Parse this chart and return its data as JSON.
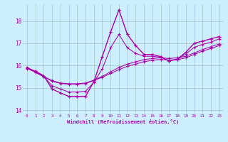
{
  "xlabel": "Windchill (Refroidissement éolien,°C)",
  "hours": [
    0,
    1,
    2,
    3,
    4,
    5,
    6,
    7,
    8,
    9,
    10,
    11,
    12,
    13,
    14,
    15,
    16,
    17,
    18,
    19,
    20,
    21,
    22,
    23
  ],
  "line_max": [
    15.9,
    15.75,
    15.55,
    14.95,
    14.78,
    14.62,
    14.62,
    14.62,
    15.28,
    16.4,
    17.5,
    18.5,
    17.4,
    16.9,
    16.5,
    16.5,
    16.4,
    16.2,
    16.3,
    16.6,
    17.0,
    17.1,
    17.2,
    17.3
  ],
  "line_mean_hi": [
    15.87,
    15.72,
    15.5,
    15.1,
    14.95,
    14.82,
    14.82,
    14.85,
    15.25,
    15.85,
    16.8,
    17.4,
    16.8,
    16.55,
    16.42,
    16.42,
    16.38,
    16.22,
    16.28,
    16.52,
    16.82,
    16.95,
    17.05,
    17.2
  ],
  "line_mean": [
    15.93,
    15.72,
    15.52,
    15.33,
    15.22,
    15.19,
    15.19,
    15.22,
    15.35,
    15.52,
    15.72,
    15.92,
    16.07,
    16.17,
    16.27,
    16.32,
    16.35,
    16.32,
    16.35,
    16.42,
    16.57,
    16.72,
    16.85,
    16.97
  ],
  "line_mean_lo": [
    15.9,
    15.7,
    15.5,
    15.3,
    15.2,
    15.17,
    15.17,
    15.2,
    15.33,
    15.48,
    15.65,
    15.82,
    15.97,
    16.07,
    16.18,
    16.24,
    16.28,
    16.25,
    16.27,
    16.35,
    16.5,
    16.65,
    16.77,
    16.9
  ],
  "line_min": [
    15.9,
    15.75,
    15.55,
    14.95,
    14.78,
    14.62,
    14.62,
    14.62,
    15.28,
    16.4,
    17.5,
    18.5,
    17.4,
    16.9,
    16.5,
    16.5,
    16.4,
    16.2,
    16.3,
    16.6,
    17.0,
    17.1,
    17.2,
    17.3
  ],
  "bg_color": "#cceeff",
  "grid_color": "#aacccc",
  "line_color": "#aa00aa",
  "ylim": [
    13.85,
    18.75
  ],
  "yticks": [
    14,
    15,
    16,
    17,
    18
  ]
}
